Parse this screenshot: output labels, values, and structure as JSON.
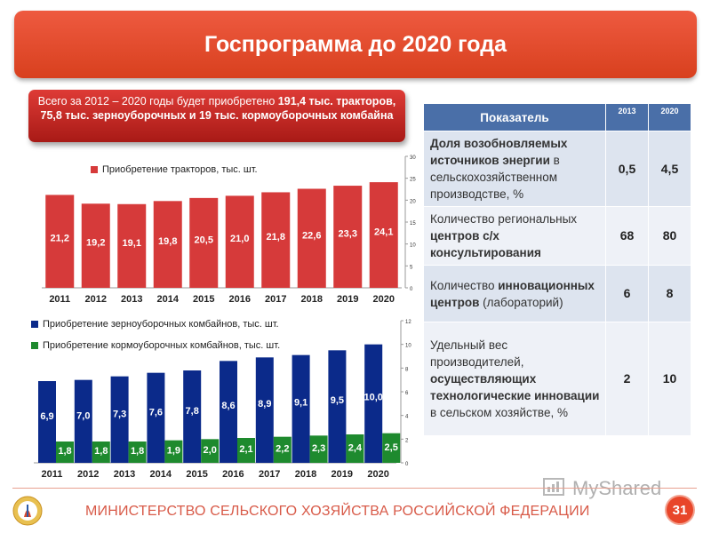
{
  "title": "Госпрограмма до 2020 года",
  "callout": {
    "part1": "Всего за 2012 – 2020 годы будет приобретено ",
    "part2": "191,4 тыс. тракторов, 75,8 тыс. зерноуборочных и 19 тыс. кормоуборочных комбайна"
  },
  "chart_data": [
    {
      "type": "bar",
      "categories": [
        "2011",
        "2012",
        "2013",
        "2014",
        "2015",
        "2016",
        "2017",
        "2018",
        "2019",
        "2020"
      ],
      "series": [
        {
          "name": "Приобретение тракторов, тыс. шт.",
          "values": [
            21.2,
            19.2,
            19.1,
            19.8,
            20.5,
            21.0,
            21.8,
            22.6,
            23.3,
            24.1
          ],
          "labels": [
            "21,2",
            "19,2",
            "19,1",
            "19,8",
            "20,5",
            "21,0",
            "21,8",
            "22,6",
            "23,3",
            "24,1"
          ],
          "color": "#d63a3a"
        }
      ],
      "ylim": [
        0,
        30
      ],
      "yticks": [
        "0",
        "5",
        "10",
        "15",
        "20",
        "25",
        "30"
      ],
      "legend": "top-left",
      "grid": false
    },
    {
      "type": "bar",
      "categories": [
        "2011",
        "2012",
        "2013",
        "2014",
        "2015",
        "2016",
        "2017",
        "2018",
        "2019",
        "2020"
      ],
      "series": [
        {
          "name": "Приобретение зерноуборочных комбайнов, тыс. шт.",
          "values": [
            6.9,
            7.0,
            7.3,
            7.6,
            7.8,
            8.6,
            8.9,
            9.1,
            9.5,
            10.0
          ],
          "labels": [
            "6,9",
            "7,0",
            "7,3",
            "7,6",
            "7,8",
            "8,6",
            "8,9",
            "9,1",
            "9,5",
            "10,0"
          ],
          "color": "#0b2a8a"
        },
        {
          "name": "Приобретение кормоуборочных комбайнов, тыс. шт.",
          "values": [
            1.8,
            1.8,
            1.8,
            1.9,
            2.0,
            2.1,
            2.2,
            2.3,
            2.4,
            2.5
          ],
          "labels": [
            "1,8",
            "1,8",
            "1,8",
            "1,9",
            "2,0",
            "2,1",
            "2,2",
            "2,3",
            "2,4",
            "2,5"
          ],
          "color": "#1e8a2e"
        }
      ],
      "ylim": [
        0,
        12
      ],
      "yticks": [
        "0",
        "2",
        "4",
        "6",
        "8",
        "10",
        "12"
      ],
      "legend": "top-left",
      "grid": false
    }
  ],
  "table": {
    "header": {
      "indicator": "Показатель",
      "y1": "2013",
      "y2": "2020"
    },
    "rows": [
      {
        "pre": "",
        "bold": "Доля возобновляемых источников энергии",
        "post": " в сельскохозяйственном производстве, %",
        "v1": "0,5",
        "v2": "4,5"
      },
      {
        "pre": "Количество региональных ",
        "bold": "центров с/х консультирования",
        "post": "",
        "v1": "68",
        "v2": "80"
      },
      {
        "pre": "Количество ",
        "bold": "инновационных центров",
        "post": " (лабораторий)",
        "v1": "6",
        "v2": "8"
      },
      {
        "pre": "Удельный вес производителей, ",
        "bold": "осуществляющих технологические инновации",
        "post": " в сельском хозяйстве, %",
        "v1": "2",
        "v2": "10"
      }
    ]
  },
  "footer": {
    "ministry": "МИНИСТЕРСТВО СЕЛЬСКОГО ХОЗЯЙСТВА РОССИЙСКОЙ ФЕДЕРАЦИИ",
    "page": "31",
    "watermark": "MyShared"
  },
  "colors": {
    "accent": "#e8462a",
    "table_header": "#4a6fa8"
  }
}
